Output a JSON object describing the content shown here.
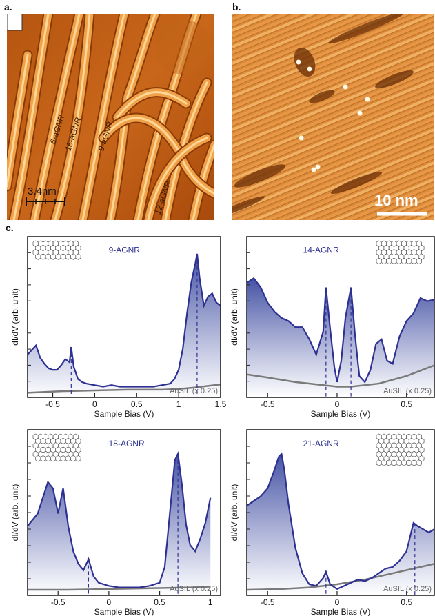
{
  "figure": {
    "panel_a": {
      "letter": "a.",
      "ribbon_labels": [
        "6-aGNR",
        "15-aGNR",
        "9-aGNR",
        "12-aGNR"
      ],
      "scale_bar": "3.4nm"
    },
    "panel_b": {
      "letter": "b.",
      "scale_bar": "10 nm"
    },
    "panel_c": {
      "letter": "c."
    }
  },
  "colors": {
    "curve": "#2e3192",
    "fill_top": "#3c4aa0",
    "ausil": "#7a7a7a",
    "stm_a_base": "#c86414",
    "stm_b_base": "#d88a3e"
  },
  "chart_data": [
    {
      "type": "line",
      "title": "9-AGNR",
      "xlabel": "Sample Bias (V)",
      "ylabel": "dI/dV (arb. unit)",
      "xlim": [
        -0.8,
        1.5
      ],
      "ylim": [
        0,
        1
      ],
      "xticks": [
        -0.5,
        0,
        0.5,
        1,
        1.5
      ],
      "xtick_labels": [
        "-0.5",
        "0",
        "0.5",
        "1",
        "1.5"
      ],
      "reference_label": "AuSIL (x 0.25)",
      "markers": [
        -0.28,
        1.22
      ],
      "series": [
        {
          "x": [
            -0.8,
            -0.75,
            -0.7,
            -0.65,
            -0.6,
            -0.55,
            -0.5,
            -0.45,
            -0.4,
            -0.35,
            -0.3,
            -0.28,
            -0.25,
            -0.2,
            -0.15,
            -0.1,
            0,
            0.1,
            0.2,
            0.3,
            0.4,
            0.5,
            0.6,
            0.7,
            0.8,
            0.9,
            0.95,
            1.0,
            1.05,
            1.1,
            1.15,
            1.2,
            1.22,
            1.25,
            1.3,
            1.35,
            1.4,
            1.45,
            1.5
          ],
          "values": [
            0.28,
            0.31,
            0.34,
            0.26,
            0.22,
            0.19,
            0.18,
            0.18,
            0.21,
            0.25,
            0.23,
            0.33,
            0.2,
            0.12,
            0.1,
            0.09,
            0.08,
            0.07,
            0.08,
            0.07,
            0.07,
            0.07,
            0.07,
            0.07,
            0.08,
            0.09,
            0.12,
            0.18,
            0.32,
            0.55,
            0.75,
            0.88,
            0.94,
            0.78,
            0.6,
            0.66,
            0.68,
            0.62,
            0.6
          ]
        },
        {
          "name": "AuSIL (x 0.25)",
          "x": [
            -0.8,
            -0.4,
            0,
            0.4,
            0.8,
            1.0,
            1.2,
            1.35,
            1.5
          ],
          "values": [
            0.03,
            0.04,
            0.045,
            0.05,
            0.05,
            0.055,
            0.065,
            0.075,
            0.085
          ]
        }
      ]
    },
    {
      "type": "line",
      "title": "14-AGNR",
      "xlabel": "Sample Bias (V)",
      "ylabel": "dI/dV (arb. unit)",
      "xlim": [
        -0.65,
        0.7
      ],
      "ylim": [
        0,
        1
      ],
      "xticks": [
        -0.5,
        0,
        0.5
      ],
      "xtick_labels": [
        "-0.5",
        "0",
        "0.5"
      ],
      "reference_label": "AuSIL (x 0.25)",
      "markers": [
        -0.08,
        0.1
      ],
      "series": [
        {
          "x": [
            -0.65,
            -0.6,
            -0.55,
            -0.5,
            -0.45,
            -0.4,
            -0.35,
            -0.3,
            -0.25,
            -0.2,
            -0.15,
            -0.1,
            -0.08,
            -0.05,
            -0.02,
            0,
            0.03,
            0.06,
            0.1,
            0.13,
            0.16,
            0.2,
            0.24,
            0.28,
            0.32,
            0.36,
            0.4,
            0.45,
            0.5,
            0.55,
            0.6,
            0.65,
            0.7
          ],
          "values": [
            0.75,
            0.78,
            0.72,
            0.62,
            0.56,
            0.52,
            0.5,
            0.46,
            0.46,
            0.38,
            0.28,
            0.43,
            0.72,
            0.45,
            0.2,
            0.1,
            0.24,
            0.52,
            0.72,
            0.4,
            0.14,
            0.1,
            0.18,
            0.35,
            0.38,
            0.24,
            0.22,
            0.4,
            0.5,
            0.55,
            0.65,
            0.63,
            0.64
          ]
        },
        {
          "name": "AuSIL (x 0.25)",
          "x": [
            -0.65,
            -0.5,
            -0.3,
            -0.1,
            0,
            0.1,
            0.3,
            0.5,
            0.7
          ],
          "values": [
            0.15,
            0.13,
            0.1,
            0.08,
            0.07,
            0.07,
            0.09,
            0.14,
            0.21
          ]
        }
      ]
    },
    {
      "type": "line",
      "title": "18-AGNR",
      "xlabel": "Sample Bias (V)",
      "ylabel": "dI/dV (arb. unit)",
      "xlim": [
        -0.8,
        1.1
      ],
      "ylim": [
        0,
        1
      ],
      "xticks": [
        -0.5,
        0,
        0.5,
        1
      ],
      "xtick_labels": [
        "-0.5",
        "0",
        "0.5",
        "1"
      ],
      "reference_label": "AuSIL (x 0.25)",
      "markers": [
        -0.2,
        0.68
      ],
      "series": [
        {
          "x": [
            -0.8,
            -0.75,
            -0.7,
            -0.65,
            -0.6,
            -0.55,
            -0.5,
            -0.45,
            -0.4,
            -0.35,
            -0.3,
            -0.25,
            -0.2,
            -0.15,
            -0.1,
            0,
            0.1,
            0.2,
            0.3,
            0.4,
            0.5,
            0.55,
            0.6,
            0.65,
            0.68,
            0.72,
            0.76,
            0.8,
            0.85,
            0.9,
            0.95,
            1.0
          ],
          "values": [
            0.44,
            0.48,
            0.52,
            0.62,
            0.72,
            0.68,
            0.52,
            0.68,
            0.44,
            0.28,
            0.2,
            0.16,
            0.23,
            0.12,
            0.08,
            0.06,
            0.05,
            0.05,
            0.05,
            0.06,
            0.08,
            0.18,
            0.52,
            0.86,
            0.9,
            0.7,
            0.45,
            0.32,
            0.28,
            0.36,
            0.46,
            0.62
          ]
        },
        {
          "name": "AuSIL (x 0.25)",
          "x": [
            -0.8,
            -0.4,
            0,
            0.4,
            0.8,
            1.0
          ],
          "values": [
            0.035,
            0.035,
            0.04,
            0.045,
            0.05,
            0.055
          ]
        }
      ]
    },
    {
      "type": "line",
      "title": "21-AGNR",
      "xlabel": "Sample Bias (V)",
      "ylabel": "dI/dV (arb. unit)",
      "xlim": [
        -0.65,
        0.7
      ],
      "ylim": [
        0,
        1
      ],
      "xticks": [
        -0.5,
        0,
        0.5
      ],
      "xtick_labels": [
        "-0.5",
        "0",
        "0.5"
      ],
      "reference_label": "AuSIL (x 0.25)",
      "markers": [
        -0.08,
        0.56
      ],
      "series": [
        {
          "x": [
            -0.65,
            -0.6,
            -0.55,
            -0.5,
            -0.45,
            -0.42,
            -0.4,
            -0.38,
            -0.35,
            -0.3,
            -0.25,
            -0.2,
            -0.15,
            -0.1,
            -0.08,
            -0.05,
            0,
            0.05,
            0.1,
            0.15,
            0.2,
            0.25,
            0.3,
            0.35,
            0.4,
            0.45,
            0.5,
            0.55,
            0.58,
            0.62,
            0.66,
            0.7
          ],
          "values": [
            0.57,
            0.6,
            0.63,
            0.68,
            0.8,
            0.88,
            0.9,
            0.8,
            0.58,
            0.3,
            0.14,
            0.07,
            0.06,
            0.11,
            0.15,
            0.07,
            0.04,
            0.06,
            0.08,
            0.1,
            0.09,
            0.11,
            0.14,
            0.17,
            0.18,
            0.22,
            0.28,
            0.46,
            0.44,
            0.42,
            0.4,
            0.42
          ]
        },
        {
          "name": "AuSIL (x 0.25)",
          "x": [
            -0.65,
            -0.4,
            -0.2,
            0,
            0.2,
            0.4,
            0.55,
            0.7
          ],
          "values": [
            0.035,
            0.04,
            0.05,
            0.07,
            0.1,
            0.14,
            0.17,
            0.2
          ]
        }
      ]
    }
  ]
}
